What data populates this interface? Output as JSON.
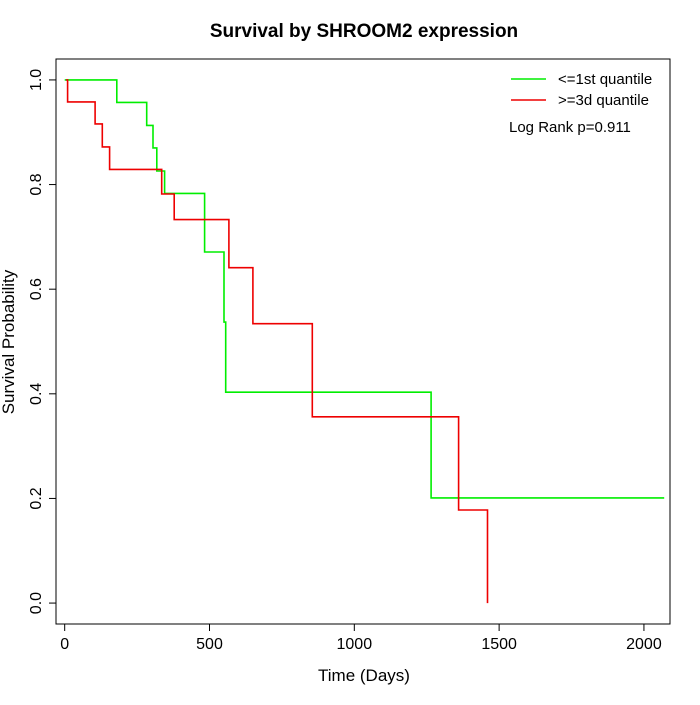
{
  "chart_data": {
    "type": "line",
    "subtype": "kaplan-meier step",
    "title": "Survival by SHROOM2 expression",
    "xlabel": "Time (Days)",
    "ylabel": "Survival Probability",
    "xlim": [
      -30,
      2090
    ],
    "ylim": [
      -0.04,
      1.04
    ],
    "xticks": [
      0,
      500,
      1000,
      1500,
      2000
    ],
    "xtick_labels": [
      "0",
      "500",
      "1000",
      "1500",
      "2000"
    ],
    "yticks": [
      0.0,
      0.2,
      0.4,
      0.6,
      0.8,
      1.0
    ],
    "ytick_labels": [
      "0.0",
      "0.2",
      "0.4",
      "0.6",
      "0.8",
      "1.0"
    ],
    "grid": false,
    "legend_position": "top-right",
    "annotation": "Log Rank p=0.911",
    "series": [
      {
        "name": "<=1st quantile",
        "color": "#00ee00",
        "points": [
          [
            0,
            1.0
          ],
          [
            180,
            1.0
          ],
          [
            180,
            0.957
          ],
          [
            283,
            0.957
          ],
          [
            283,
            0.913
          ],
          [
            305,
            0.913
          ],
          [
            305,
            0.87
          ],
          [
            318,
            0.87
          ],
          [
            318,
            0.826
          ],
          [
            345,
            0.826
          ],
          [
            345,
            0.783
          ],
          [
            483,
            0.783
          ],
          [
            483,
            0.671
          ],
          [
            550,
            0.671
          ],
          [
            550,
            0.537
          ],
          [
            556,
            0.537
          ],
          [
            556,
            0.403
          ],
          [
            1265,
            0.403
          ],
          [
            1265,
            0.201
          ],
          [
            2070,
            0.201
          ]
        ]
      },
      {
        "name": ">=3d quantile",
        "color": "#ee0000",
        "points": [
          [
            5,
            1.0
          ],
          [
            10,
            1.0
          ],
          [
            10,
            0.958
          ],
          [
            105,
            0.958
          ],
          [
            105,
            0.916
          ],
          [
            130,
            0.916
          ],
          [
            130,
            0.872
          ],
          [
            155,
            0.872
          ],
          [
            155,
            0.829
          ],
          [
            335,
            0.829
          ],
          [
            335,
            0.782
          ],
          [
            378,
            0.782
          ],
          [
            378,
            0.733
          ],
          [
            567,
            0.733
          ],
          [
            567,
            0.641
          ],
          [
            650,
            0.641
          ],
          [
            650,
            0.534
          ],
          [
            855,
            0.534
          ],
          [
            855,
            0.356
          ],
          [
            1360,
            0.356
          ],
          [
            1360,
            0.178
          ],
          [
            1460,
            0.178
          ],
          [
            1460,
            0.0
          ]
        ]
      }
    ]
  }
}
